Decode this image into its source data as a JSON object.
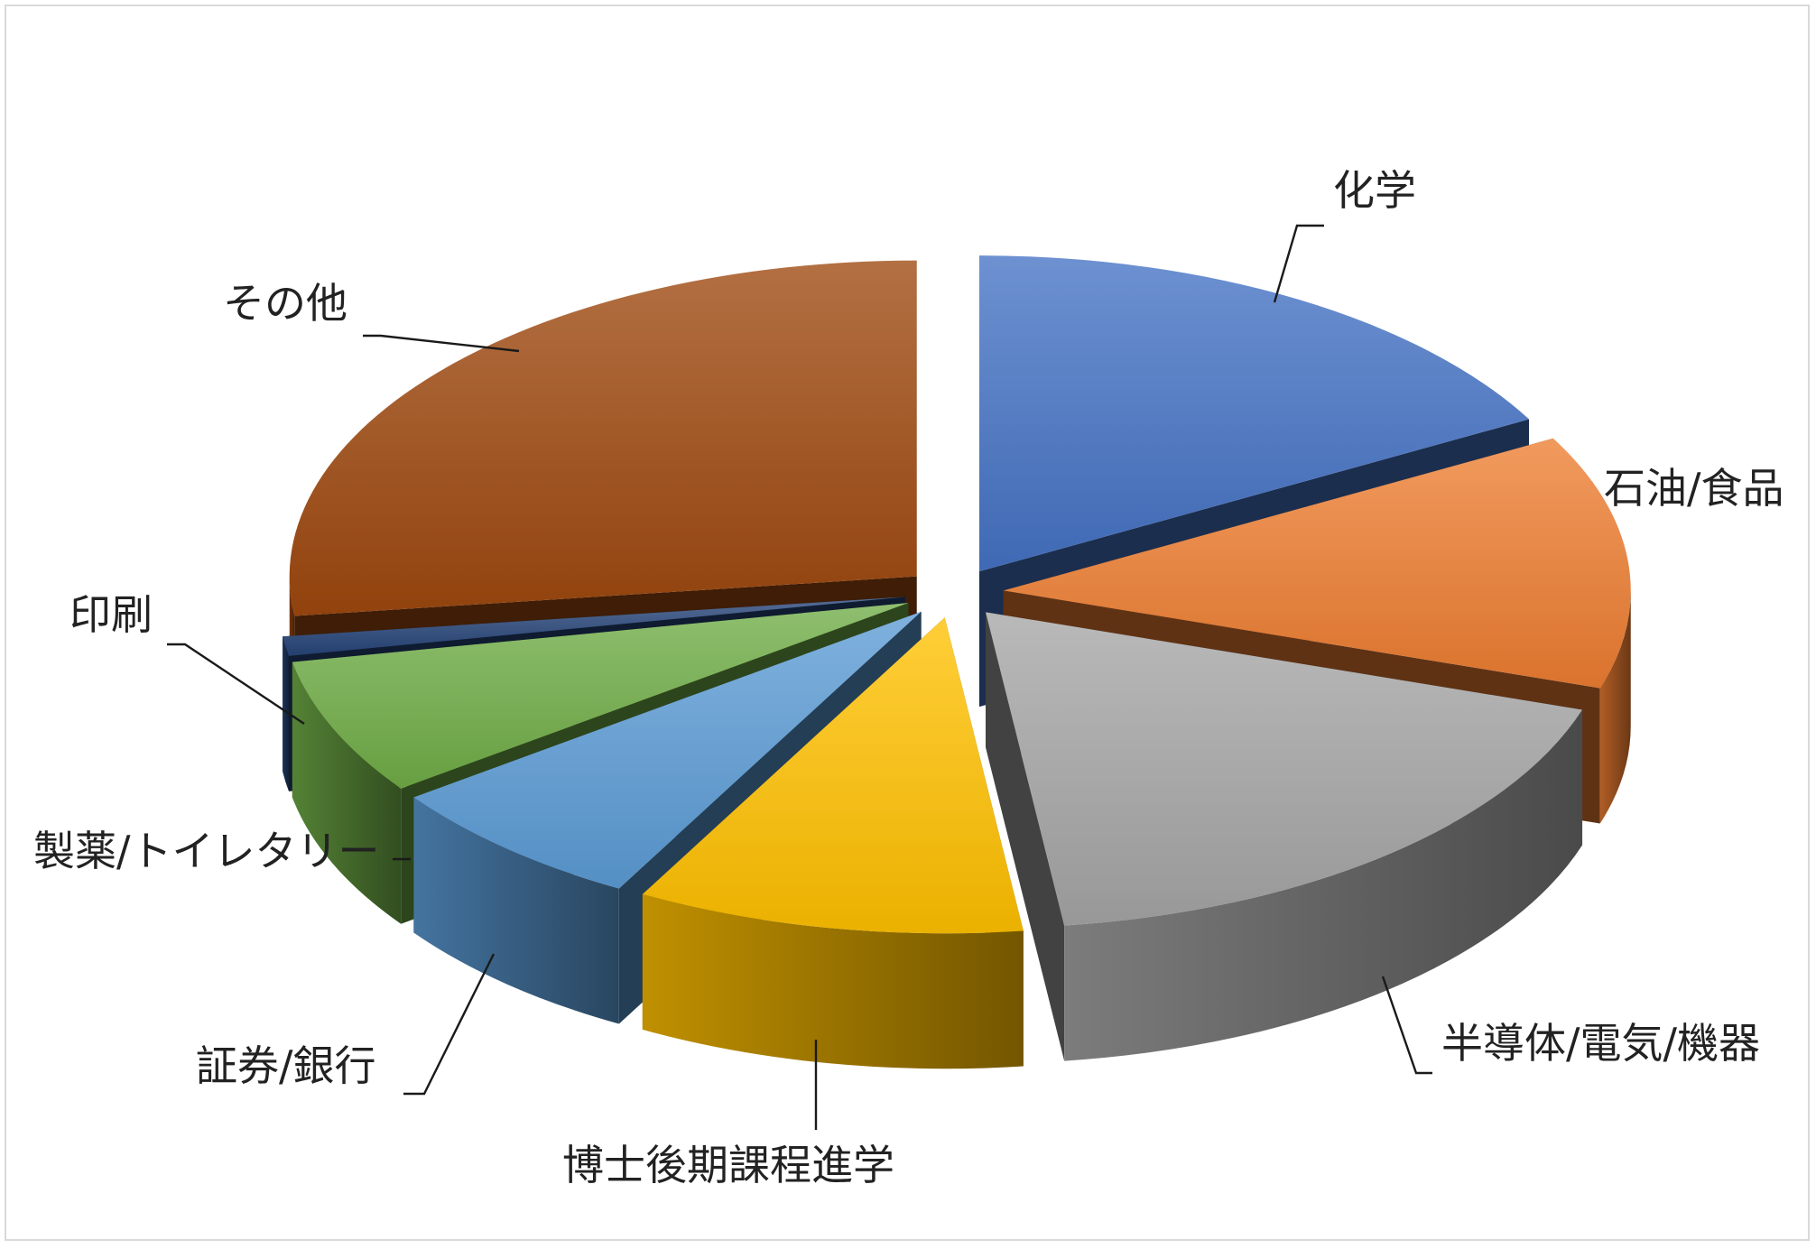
{
  "chart_data": {
    "type": "pie",
    "style": "3d-exploded",
    "legend": "none",
    "slices": [
      {
        "label": "化学",
        "value": 17,
        "color": "#4472c4"
      },
      {
        "label": "石油/食品",
        "value": 13,
        "color": "#ed7d31"
      },
      {
        "label": "半導体/電気/機器",
        "value": 18,
        "color": "#a5a5a5"
      },
      {
        "label": "博士後期課程進学",
        "value": 10,
        "color": "#ffc000"
      },
      {
        "label": "証券/銀行",
        "value": 7,
        "color": "#5b9bd5"
      },
      {
        "label": "製薬/トイレタリー",
        "value": 7,
        "color": "#70ad47"
      },
      {
        "label": "印刷",
        "value": 1,
        "color": "#264478"
      },
      {
        "label": "その他",
        "value": 27,
        "color": "#9e480e"
      }
    ]
  }
}
